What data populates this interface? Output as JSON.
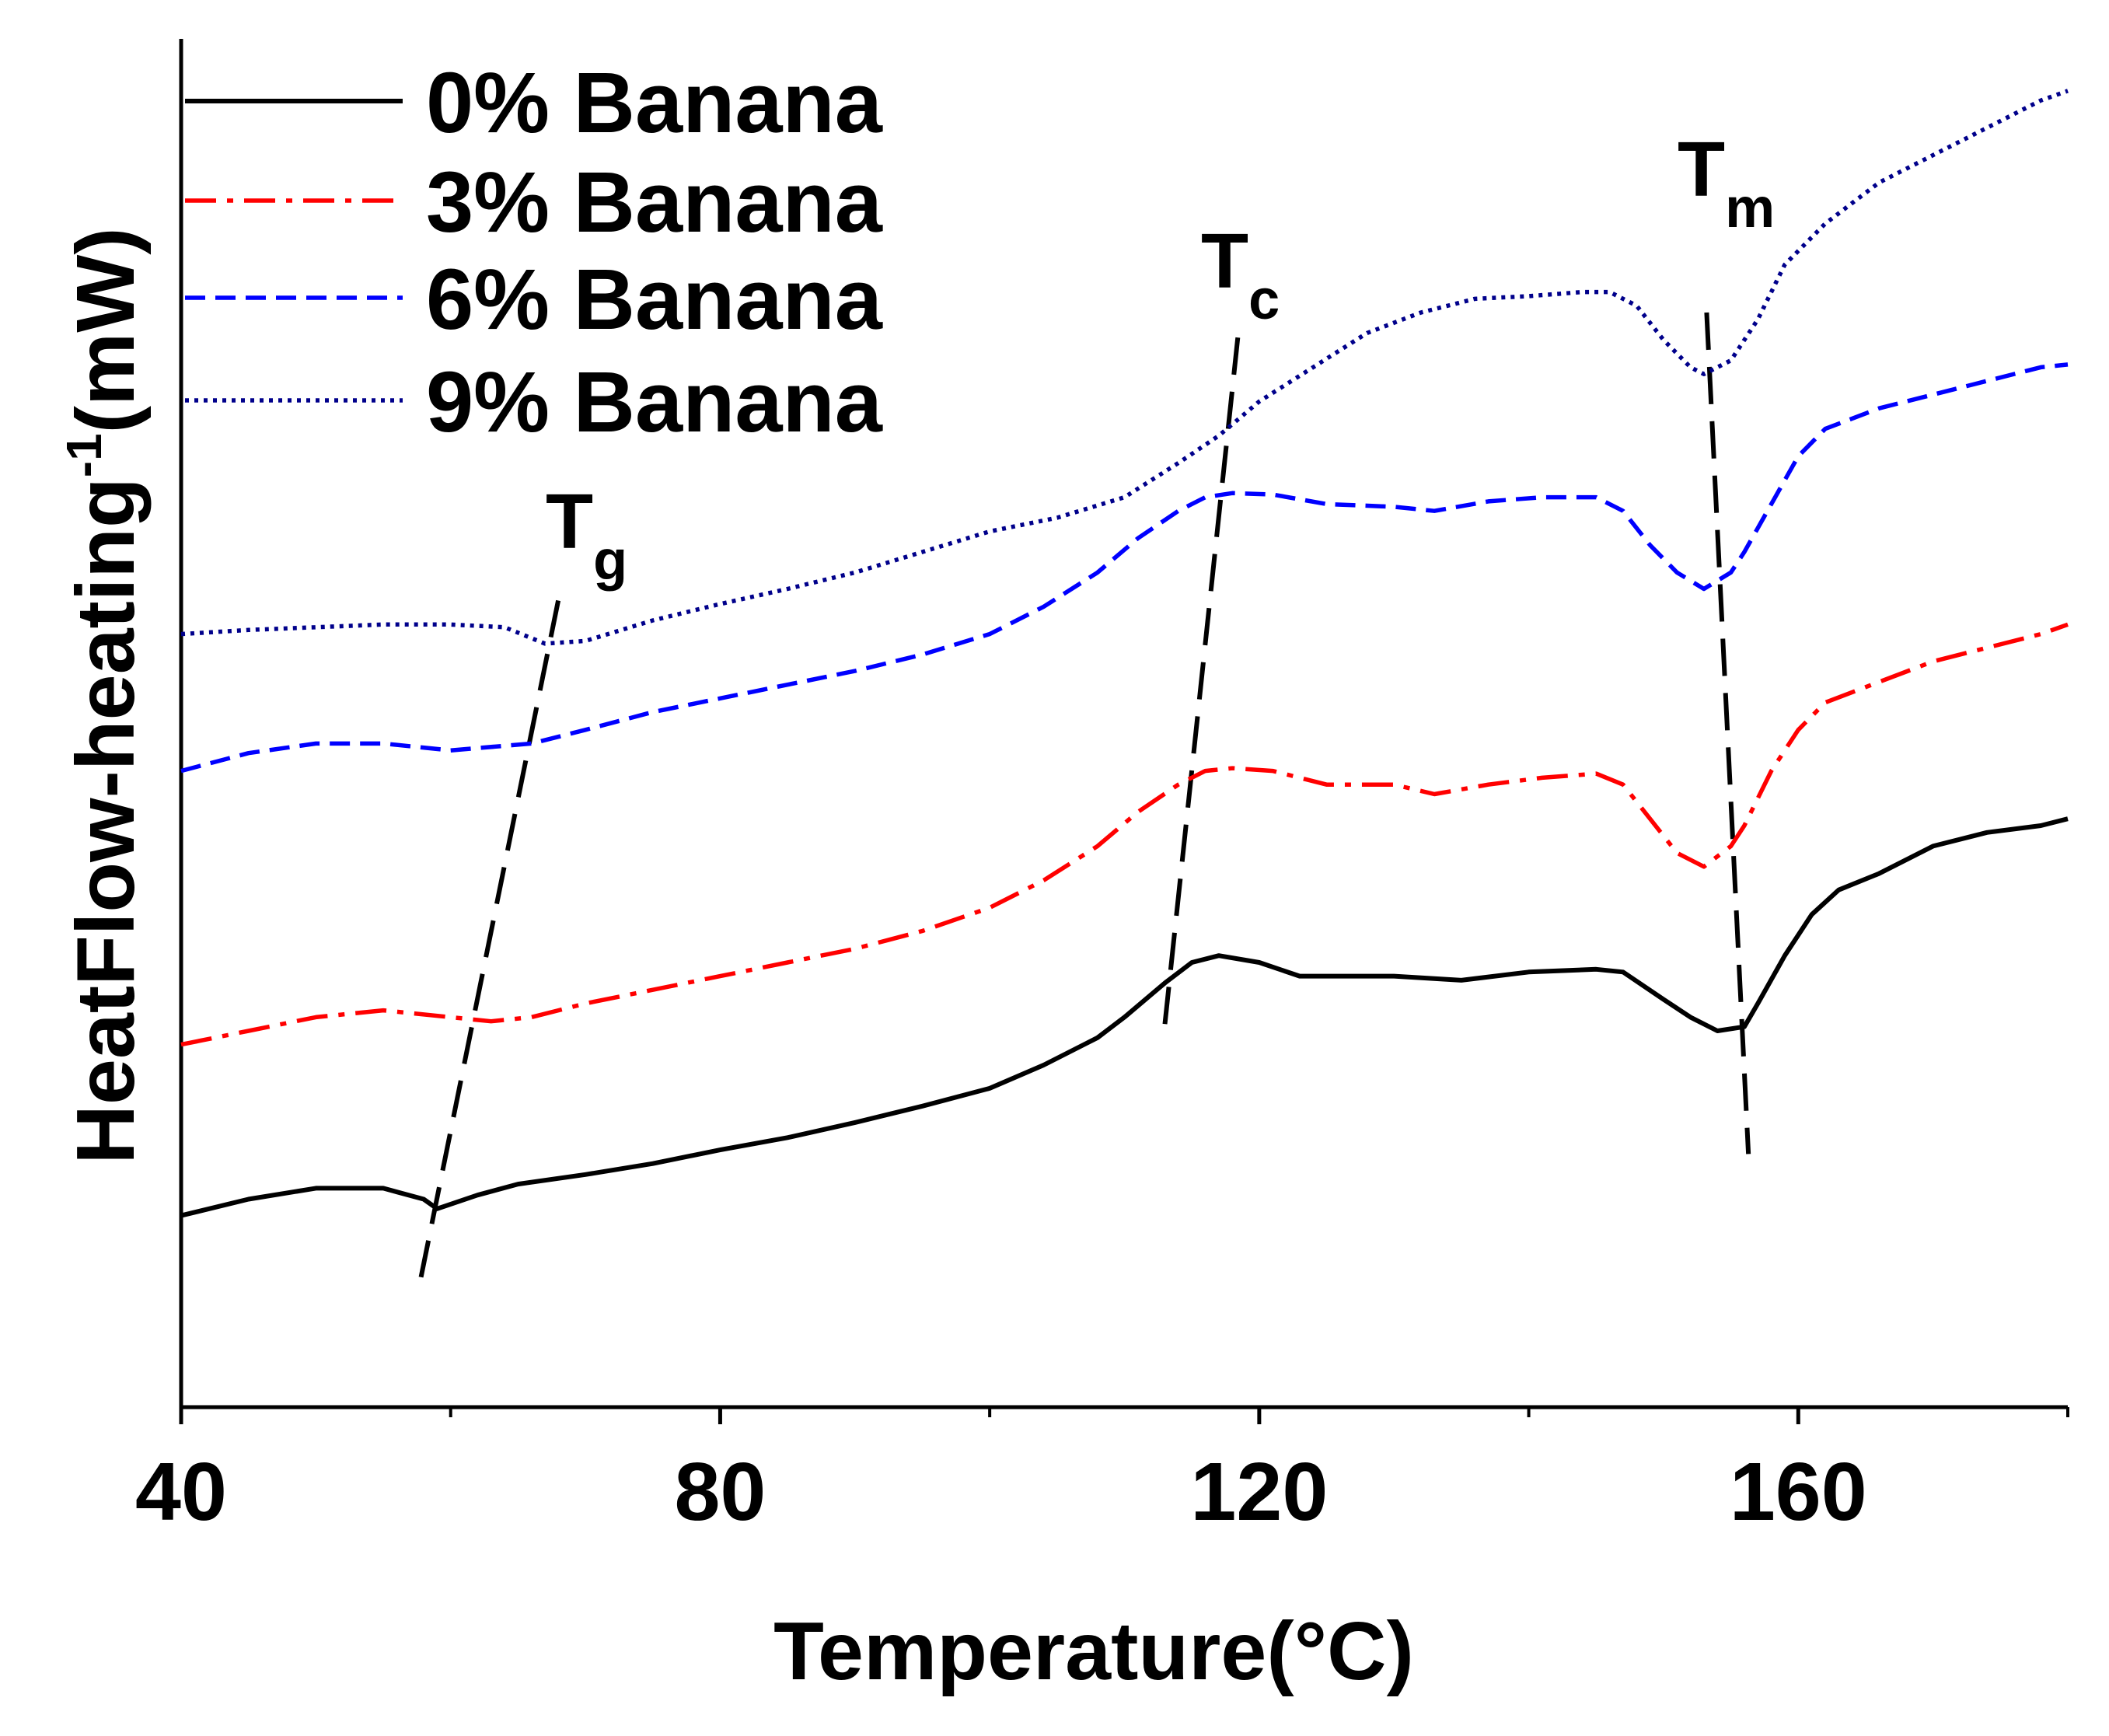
{
  "chart_data": {
    "type": "line",
    "title": "",
    "xlabel": "Temperature(°C)",
    "ylabel": "HeatFlow-heating",
    "ylabel_sup": "-1",
    "ylabel_unit": "(mW)",
    "xlim": [
      40,
      180
    ],
    "ylim": [
      0,
      10
    ],
    "x_ticks": [
      40,
      80,
      120,
      160
    ],
    "x_minor_ticks": [
      60,
      100,
      140,
      180
    ],
    "y_ticks_shown": false,
    "legend_position": "top-left",
    "series": [
      {
        "name": "0% Banana",
        "label": "0% Banana",
        "color": "#000000",
        "style": "solid",
        "points": [
          [
            40,
            1.4
          ],
          [
            45,
            1.52
          ],
          [
            50,
            1.6
          ],
          [
            55,
            1.6
          ],
          [
            58,
            1.52
          ],
          [
            59,
            1.45
          ],
          [
            62,
            1.55
          ],
          [
            65,
            1.63
          ],
          [
            70,
            1.7
          ],
          [
            75,
            1.78
          ],
          [
            80,
            1.88
          ],
          [
            85,
            1.97
          ],
          [
            90,
            2.08
          ],
          [
            95,
            2.2
          ],
          [
            100,
            2.33
          ],
          [
            104,
            2.5
          ],
          [
            108,
            2.7
          ],
          [
            110,
            2.85
          ],
          [
            113,
            3.1
          ],
          [
            115,
            3.25
          ],
          [
            117,
            3.3
          ],
          [
            120,
            3.25
          ],
          [
            123,
            3.15
          ],
          [
            126,
            3.15
          ],
          [
            130,
            3.15
          ],
          [
            135,
            3.12
          ],
          [
            140,
            3.18
          ],
          [
            145,
            3.2
          ],
          [
            147,
            3.18
          ],
          [
            150,
            2.98
          ],
          [
            152,
            2.85
          ],
          [
            154,
            2.75
          ],
          [
            156,
            2.78
          ],
          [
            157,
            2.95
          ],
          [
            159,
            3.3
          ],
          [
            161,
            3.6
          ],
          [
            163,
            3.78
          ],
          [
            166,
            3.9
          ],
          [
            170,
            4.1
          ],
          [
            174,
            4.2
          ],
          [
            178,
            4.25
          ],
          [
            180,
            4.3
          ]
        ]
      },
      {
        "name": "3% Banana",
        "label": "3% Banana",
        "color": "#ff0000",
        "style": "dashdot",
        "points": [
          [
            40,
            2.65
          ],
          [
            45,
            2.75
          ],
          [
            50,
            2.85
          ],
          [
            55,
            2.9
          ],
          [
            60,
            2.85
          ],
          [
            63,
            2.82
          ],
          [
            66,
            2.85
          ],
          [
            70,
            2.95
          ],
          [
            75,
            3.05
          ],
          [
            80,
            3.15
          ],
          [
            85,
            3.25
          ],
          [
            90,
            3.35
          ],
          [
            95,
            3.48
          ],
          [
            100,
            3.65
          ],
          [
            104,
            3.85
          ],
          [
            108,
            4.1
          ],
          [
            111,
            4.35
          ],
          [
            114,
            4.55
          ],
          [
            116,
            4.65
          ],
          [
            118,
            4.67
          ],
          [
            121,
            4.65
          ],
          [
            125,
            4.55
          ],
          [
            130,
            4.55
          ],
          [
            133,
            4.48
          ],
          [
            137,
            4.55
          ],
          [
            141,
            4.6
          ],
          [
            145,
            4.63
          ],
          [
            147,
            4.55
          ],
          [
            149,
            4.3
          ],
          [
            151,
            4.05
          ],
          [
            153,
            3.95
          ],
          [
            155,
            4.1
          ],
          [
            156,
            4.25
          ],
          [
            158,
            4.65
          ],
          [
            160,
            4.95
          ],
          [
            162,
            5.15
          ],
          [
            166,
            5.3
          ],
          [
            170,
            5.45
          ],
          [
            174,
            5.55
          ],
          [
            178,
            5.65
          ],
          [
            180,
            5.72
          ]
        ]
      },
      {
        "name": "6% Banana",
        "label": "6% Banana",
        "color": "#0000ff",
        "style": "dashed",
        "points": [
          [
            40,
            4.65
          ],
          [
            45,
            4.78
          ],
          [
            50,
            4.85
          ],
          [
            55,
            4.85
          ],
          [
            60,
            4.8
          ],
          [
            66,
            4.85
          ],
          [
            70,
            4.95
          ],
          [
            75,
            5.08
          ],
          [
            80,
            5.18
          ],
          [
            85,
            5.28
          ],
          [
            90,
            5.38
          ],
          [
            95,
            5.5
          ],
          [
            100,
            5.65
          ],
          [
            104,
            5.85
          ],
          [
            108,
            6.1
          ],
          [
            111,
            6.35
          ],
          [
            114,
            6.55
          ],
          [
            116,
            6.65
          ],
          [
            118,
            6.68
          ],
          [
            121,
            6.67
          ],
          [
            125,
            6.6
          ],
          [
            130,
            6.58
          ],
          [
            133,
            6.55
          ],
          [
            137,
            6.62
          ],
          [
            141,
            6.65
          ],
          [
            145,
            6.65
          ],
          [
            147,
            6.55
          ],
          [
            149,
            6.3
          ],
          [
            151,
            6.1
          ],
          [
            153,
            5.98
          ],
          [
            155,
            6.1
          ],
          [
            156,
            6.25
          ],
          [
            158,
            6.6
          ],
          [
            160,
            6.95
          ],
          [
            162,
            7.15
          ],
          [
            166,
            7.3
          ],
          [
            170,
            7.4
          ],
          [
            174,
            7.5
          ],
          [
            178,
            7.6
          ],
          [
            180,
            7.62
          ]
        ]
      },
      {
        "name": "9% Banana",
        "label": "9% Banana",
        "color": "#00008b",
        "style": "dotted",
        "points": [
          [
            40,
            5.65
          ],
          [
            45,
            5.68
          ],
          [
            50,
            5.7
          ],
          [
            55,
            5.72
          ],
          [
            60,
            5.72
          ],
          [
            64,
            5.7
          ],
          [
            67,
            5.58
          ],
          [
            70,
            5.6
          ],
          [
            75,
            5.75
          ],
          [
            80,
            5.87
          ],
          [
            85,
            5.98
          ],
          [
            90,
            6.1
          ],
          [
            95,
            6.25
          ],
          [
            100,
            6.4
          ],
          [
            105,
            6.5
          ],
          [
            110,
            6.65
          ],
          [
            114,
            6.9
          ],
          [
            117,
            7.1
          ],
          [
            120,
            7.35
          ],
          [
            124,
            7.6
          ],
          [
            128,
            7.85
          ],
          [
            132,
            8.0
          ],
          [
            136,
            8.1
          ],
          [
            140,
            8.12
          ],
          [
            144,
            8.15
          ],
          [
            146,
            8.15
          ],
          [
            148,
            8.05
          ],
          [
            150,
            7.8
          ],
          [
            152,
            7.6
          ],
          [
            153,
            7.55
          ],
          [
            155,
            7.65
          ],
          [
            157,
            7.95
          ],
          [
            159,
            8.35
          ],
          [
            162,
            8.65
          ],
          [
            166,
            8.95
          ],
          [
            170,
            9.15
          ],
          [
            174,
            9.35
          ],
          [
            178,
            9.55
          ],
          [
            180,
            9.62
          ]
        ]
      }
    ],
    "annotations": [
      {
        "symbol": "T",
        "subscript": "g",
        "name": "glass-transition"
      },
      {
        "symbol": "T",
        "subscript": "c",
        "name": "crystallization"
      },
      {
        "symbol": "T",
        "subscript": "m",
        "name": "melting"
      }
    ],
    "guide_lines": [
      {
        "name": "tg-guide",
        "from": [
          57.8,
          0.95
        ],
        "to": [
          68.2,
          6.0
        ]
      },
      {
        "name": "tc-guide",
        "from": [
          113.0,
          2.8
        ],
        "to": [
          118.5,
          7.9
        ]
      },
      {
        "name": "tm-guide",
        "from": [
          153.2,
          8.0
        ],
        "to": [
          156.3,
          1.85
        ]
      }
    ]
  }
}
